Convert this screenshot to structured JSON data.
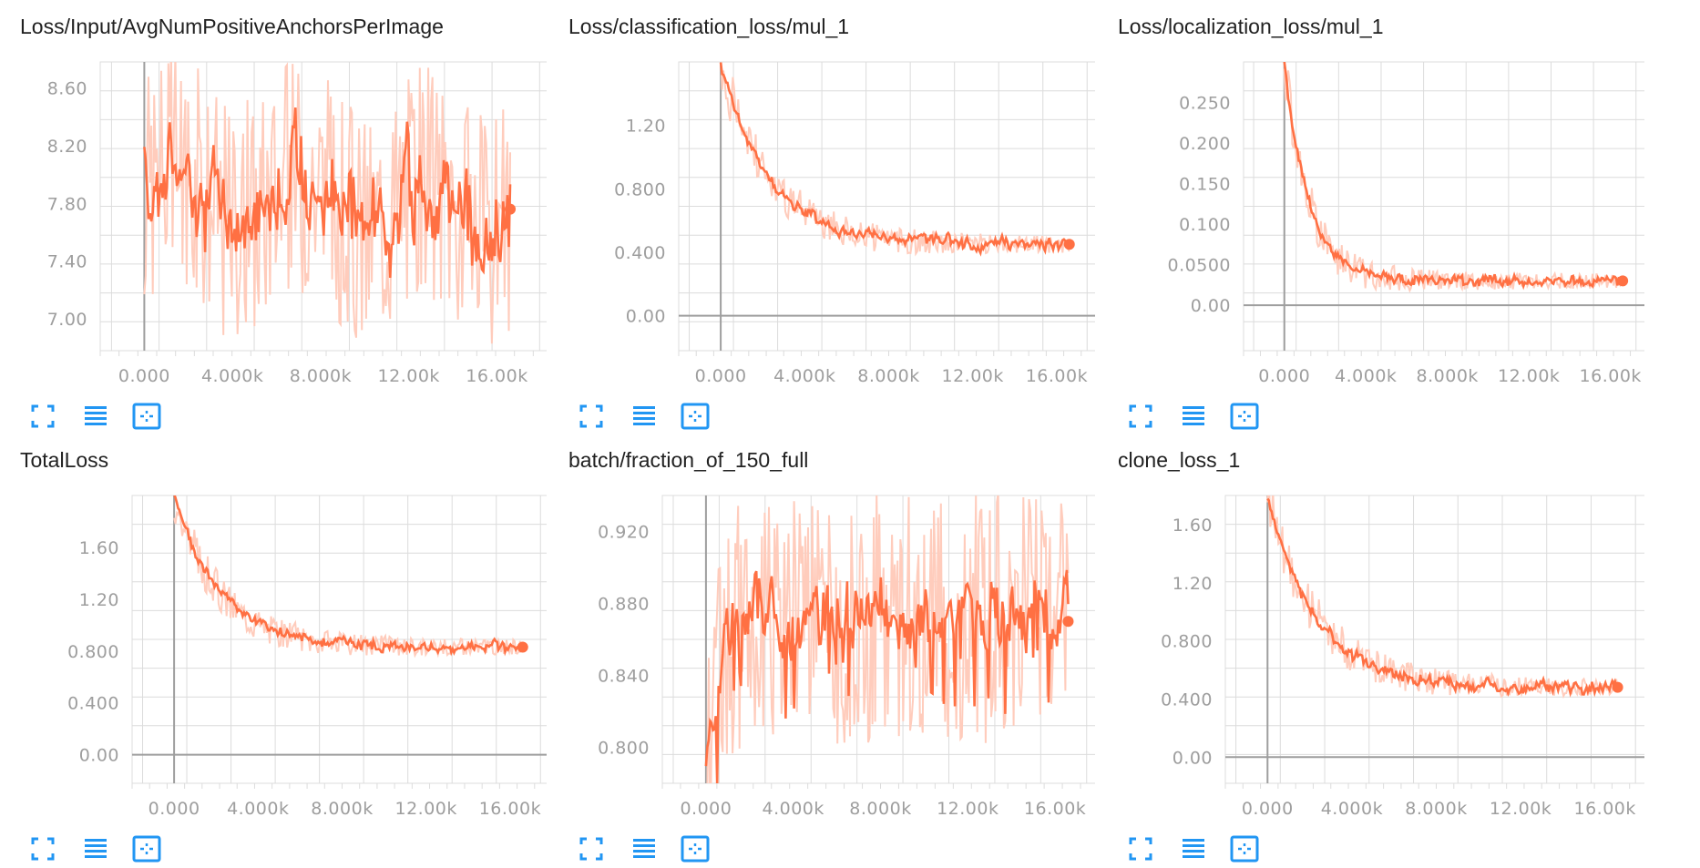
{
  "colors": {
    "accent": "#ff7043",
    "accent_light": "#ffccbc",
    "grid": "#dcdcdc",
    "axis": "#9e9e9e",
    "icon": "#2196f3"
  },
  "toolbar_icons": [
    "fullscreen-icon",
    "data-table-icon",
    "fit-domain-icon"
  ],
  "chart_data": [
    {
      "type": "line",
      "title": "Loss/Input/AvgNumPositiveAnchorsPerImage",
      "x_ticks": [
        "0.000",
        "4.000k",
        "8.000k",
        "12.00k",
        "16.00k"
      ],
      "y_ticks": [
        "7.00",
        "7.40",
        "7.80",
        "8.20",
        "8.60"
      ],
      "xlim": [
        -2000,
        18500
      ],
      "ylim": [
        6.78,
        8.78
      ],
      "start": 7.9,
      "end": 7.76,
      "noise": 0.19,
      "raw_noise": 0.85,
      "wave": 0.18
    },
    {
      "type": "line",
      "title": "Loss/classification_loss/mul_1",
      "x_ticks": [
        "0.000",
        "4.000k",
        "8.000k",
        "12.00k",
        "16.00k"
      ],
      "y_ticks": [
        "0.00",
        "0.400",
        "0.800",
        "1.20"
      ],
      "xlim": [
        -2000,
        18000
      ],
      "ylim": [
        -0.22,
        1.6
      ],
      "start": 1.6,
      "end": 0.45,
      "decay": 2300,
      "noise": 0.025,
      "raw_noise": 0.14
    },
    {
      "type": "line",
      "title": "Loss/localization_loss/mul_1",
      "x_ticks": [
        "0.000",
        "4.000k",
        "8.000k",
        "12.00k",
        "16.00k"
      ],
      "y_ticks": [
        "0.00",
        "0.0500",
        "0.100",
        "0.150",
        "0.200",
        "0.250"
      ],
      "xlim": [
        -2000,
        17800
      ],
      "ylim": [
        -0.056,
        0.3
      ],
      "start": 0.3,
      "end": 0.03,
      "decay": 1200,
      "noise": 0.004,
      "raw_noise": 0.03
    },
    {
      "type": "line",
      "title": "TotalLoss",
      "x_ticks": [
        "0.000",
        "4.000k",
        "8.000k",
        "12.00k",
        "16.00k"
      ],
      "y_ticks": [
        "0.00",
        "0.400",
        "0.800",
        "1.20",
        "1.60"
      ],
      "xlim": [
        -2000,
        18000
      ],
      "ylim": [
        -0.22,
        2.0
      ],
      "start": 2.0,
      "end": 0.83,
      "decay": 2200,
      "noise": 0.025,
      "raw_noise": 0.15
    },
    {
      "type": "line",
      "title": "batch/fraction_of_150_full",
      "x_ticks": [
        "0.000",
        "4.000k",
        "8.000k",
        "12.00k",
        "16.00k"
      ],
      "y_ticks": [
        "0.800",
        "0.840",
        "0.880",
        "0.920"
      ],
      "xlim": [
        -2000,
        18000
      ],
      "ylim": [
        0.78,
        0.94
      ],
      "start": 0.78,
      "end": 0.87,
      "plateau": 0.872,
      "noise": 0.012,
      "raw_noise": 0.07
    },
    {
      "type": "line",
      "title": "clone_loss_1",
      "x_ticks": [
        "0.000",
        "4.000k",
        "8.000k",
        "12.00k",
        "16.00k"
      ],
      "y_ticks": [
        "0.00",
        "0.400",
        "0.800",
        "1.20",
        "1.60"
      ],
      "xlim": [
        -2000,
        18000
      ],
      "ylim": [
        -0.18,
        1.8
      ],
      "start": 1.8,
      "end": 0.48,
      "decay": 2300,
      "noise": 0.025,
      "raw_noise": 0.15
    }
  ]
}
